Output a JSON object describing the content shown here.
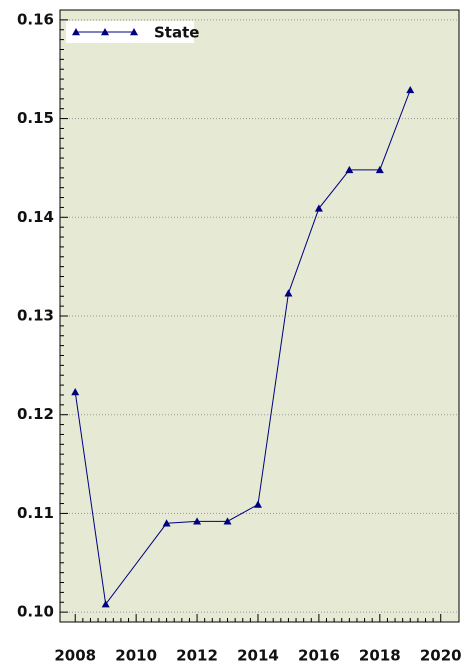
{
  "chart_data": {
    "type": "line",
    "x": [
      2008,
      2009,
      2011,
      2012,
      2013,
      2014,
      2015,
      2016,
      2017,
      2018,
      2019
    ],
    "series": [
      {
        "name": "State",
        "color": "#000080",
        "values": [
          0.1223,
          0.1008,
          0.109,
          0.1092,
          0.1092,
          0.1109,
          0.1323,
          0.1409,
          0.1448,
          0.1448,
          0.1529
        ]
      }
    ],
    "xlim": [
      2007.5,
      2020.6
    ],
    "xticks": [
      2008,
      2010,
      2012,
      2014,
      2016,
      2018,
      2020
    ],
    "ylim": [
      0.099,
      0.161
    ],
    "yticks": [
      {
        "value": 0.1,
        "label": "0.10"
      },
      0.11,
      0.12,
      0.13,
      0.14,
      0.15,
      0.16
    ],
    "grid": true,
    "legend": "upper left"
  }
}
